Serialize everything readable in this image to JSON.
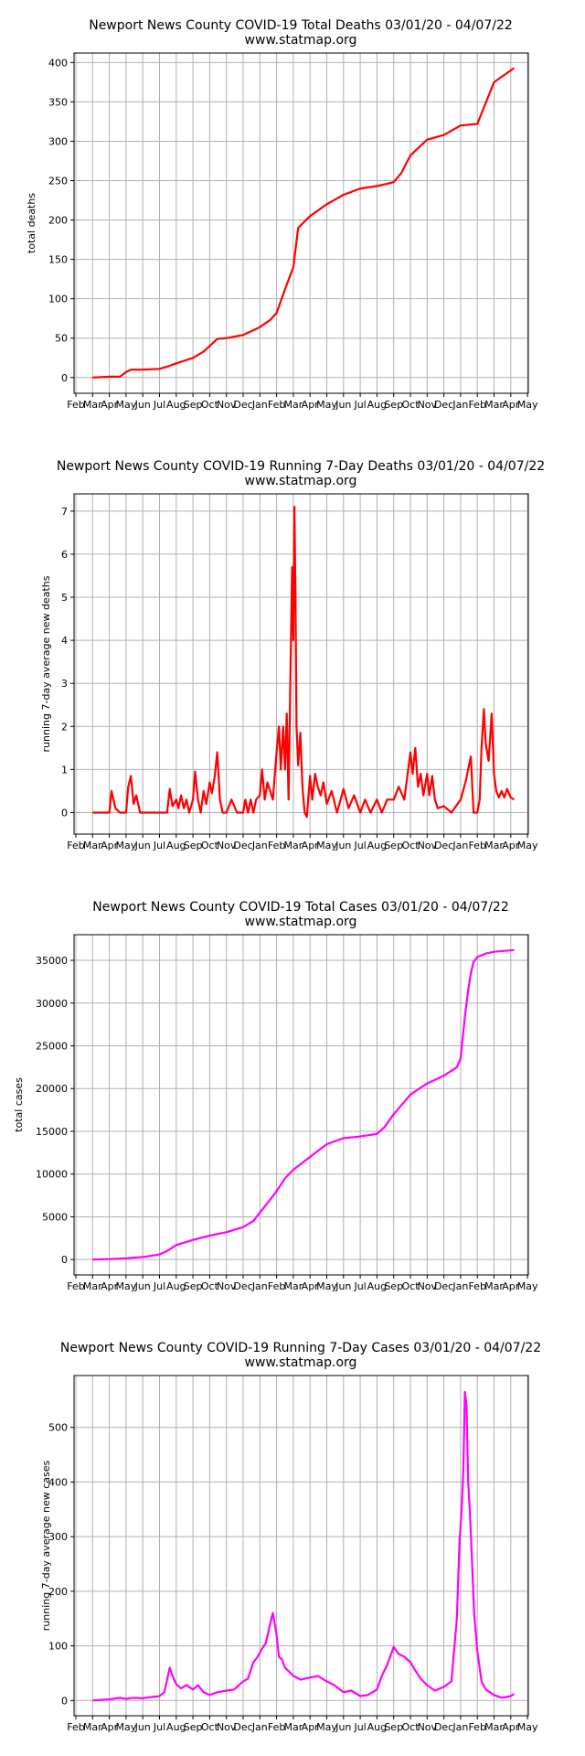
{
  "colors": {
    "deaths": "#ff0000",
    "cases": "#ff00ff",
    "grid": "#b0b0b0",
    "axis": "#000000"
  },
  "month_ticks": [
    "Feb",
    "Mar",
    "Apr",
    "May",
    "Jun",
    "Jul",
    "Aug",
    "Sep",
    "Oct",
    "Nov",
    "Dec",
    "Jan",
    "Feb",
    "Mar",
    "Apr",
    "May",
    "Jun",
    "Jul",
    "Aug",
    "Sep",
    "Oct",
    "Nov",
    "Dec",
    "Jan",
    "Feb",
    "Mar",
    "Apr",
    "May"
  ],
  "chart_data": [
    {
      "type": "line",
      "title": "Newport News County COVID-19 Total Deaths 03/01/20 - 04/07/22",
      "subtitle": "www.statmap.org",
      "xlabel": "",
      "ylabel": "total deaths",
      "grid": true,
      "ylim": [
        -20,
        412
      ],
      "yticks": [
        0,
        50,
        100,
        150,
        200,
        250,
        300,
        350,
        400
      ],
      "series": [
        {
          "color": "deaths",
          "x": [
            "2020-03-01",
            "2020-04-01",
            "2020-04-20",
            "2020-05-01",
            "2020-05-10",
            "2020-06-01",
            "2020-07-01",
            "2020-07-20",
            "2020-08-01",
            "2020-09-01",
            "2020-09-20",
            "2020-10-01",
            "2020-10-15",
            "2020-11-01",
            "2020-12-01",
            "2021-01-01",
            "2021-01-20",
            "2021-02-01",
            "2021-02-15",
            "2021-03-01",
            "2021-03-10",
            "2021-04-01",
            "2021-05-01",
            "2021-06-01",
            "2021-07-01",
            "2021-08-01",
            "2021-09-01",
            "2021-09-15",
            "2021-10-01",
            "2021-11-01",
            "2021-12-01",
            "2022-01-01",
            "2022-02-01",
            "2022-03-01",
            "2022-04-07"
          ],
          "y": [
            0,
            1,
            1,
            7,
            10,
            10,
            11,
            15,
            18,
            25,
            33,
            40,
            49,
            50,
            54,
            64,
            73,
            82,
            112,
            140,
            190,
            205,
            220,
            232,
            240,
            243,
            248,
            260,
            282,
            302,
            308,
            320,
            322,
            375,
            393
          ]
        }
      ]
    },
    {
      "type": "line",
      "title": "Newport News County COVID-19 Running 7-Day Deaths 03/01/20 - 04/07/22",
      "subtitle": "www.statmap.org",
      "xlabel": "",
      "ylabel": "running 7-day average new deaths",
      "grid": true,
      "ylim": [
        -0.5,
        7.4
      ],
      "yticks": [
        0,
        1,
        2,
        3,
        4,
        5,
        6,
        7
      ],
      "series": [
        {
          "color": "deaths",
          "x": [
            "2020-03-01",
            "2020-04-01",
            "2020-04-05",
            "2020-04-12",
            "2020-04-20",
            "2020-05-01",
            "2020-05-05",
            "2020-05-10",
            "2020-05-15",
            "2020-05-20",
            "2020-05-27",
            "2020-06-01",
            "2020-07-01",
            "2020-07-15",
            "2020-07-20",
            "2020-07-25",
            "2020-08-01",
            "2020-08-05",
            "2020-08-10",
            "2020-08-15",
            "2020-08-20",
            "2020-08-25",
            "2020-09-01",
            "2020-09-05",
            "2020-09-10",
            "2020-09-15",
            "2020-09-20",
            "2020-09-25",
            "2020-10-01",
            "2020-10-05",
            "2020-10-10",
            "2020-10-15",
            "2020-10-20",
            "2020-10-25",
            "2020-11-01",
            "2020-11-10",
            "2020-11-20",
            "2020-12-01",
            "2020-12-05",
            "2020-12-10",
            "2020-12-15",
            "2020-12-20",
            "2020-12-25",
            "2021-01-01",
            "2021-01-05",
            "2021-01-10",
            "2021-01-15",
            "2021-01-20",
            "2021-01-25",
            "2021-02-01",
            "2021-02-05",
            "2021-02-08",
            "2021-02-12",
            "2021-02-15",
            "2021-02-18",
            "2021-02-21",
            "2021-02-24",
            "2021-02-27",
            "2021-03-01",
            "2021-03-03",
            "2021-03-05",
            "2021-03-07",
            "2021-03-10",
            "2021-03-14",
            "2021-03-18",
            "2021-03-22",
            "2021-03-26",
            "2021-04-01",
            "2021-04-05",
            "2021-04-10",
            "2021-04-15",
            "2021-04-20",
            "2021-04-25",
            "2021-05-01",
            "2021-05-10",
            "2021-05-20",
            "2021-06-01",
            "2021-06-10",
            "2021-06-20",
            "2021-07-01",
            "2021-07-10",
            "2021-07-20",
            "2021-08-01",
            "2021-08-10",
            "2021-08-20",
            "2021-09-01",
            "2021-09-10",
            "2021-09-20",
            "2021-10-01",
            "2021-10-05",
            "2021-10-10",
            "2021-10-15",
            "2021-10-20",
            "2021-10-25",
            "2021-11-01",
            "2021-11-05",
            "2021-11-10",
            "2021-11-15",
            "2021-11-20",
            "2021-12-01",
            "2021-12-15",
            "2022-01-01",
            "2022-01-10",
            "2022-01-20",
            "2022-01-25",
            "2022-02-01",
            "2022-02-05",
            "2022-02-08",
            "2022-02-12",
            "2022-02-15",
            "2022-02-20",
            "2022-02-25",
            "2022-03-01",
            "2022-03-05",
            "2022-03-10",
            "2022-03-15",
            "2022-03-20",
            "2022-03-25",
            "2022-04-01",
            "2022-04-07"
          ],
          "y": [
            0,
            0,
            0.5,
            0.1,
            0,
            0,
            0.6,
            0.85,
            0.2,
            0.4,
            0,
            0,
            0,
            0,
            0.55,
            0.15,
            0.3,
            0.1,
            0.4,
            0.1,
            0.3,
            0,
            0.3,
            0.95,
            0.3,
            0,
            0.5,
            0.2,
            0.7,
            0.45,
            0.8,
            1.4,
            0.3,
            0,
            0,
            0.3,
            0,
            0,
            0.3,
            0,
            0.3,
            0,
            0.3,
            0.4,
            1.0,
            0.3,
            0.7,
            0.5,
            0.3,
            1.4,
            2.0,
            1.0,
            2.0,
            1.0,
            2.3,
            0.3,
            3.0,
            5.7,
            4.0,
            7.1,
            5.0,
            2.0,
            1.1,
            1.85,
            0.6,
            0,
            -0.1,
            0.85,
            0.3,
            0.9,
            0.6,
            0.4,
            0.7,
            0.2,
            0.5,
            0,
            0.55,
            0.1,
            0.4,
            0,
            0.3,
            0,
            0.3,
            0,
            0.3,
            0.3,
            0.6,
            0.3,
            1.4,
            0.9,
            1.5,
            0.6,
            0.9,
            0.4,
            0.9,
            0.4,
            0.85,
            0.3,
            0.1,
            0.15,
            0,
            0.3,
            0.7,
            1.3,
            0,
            0,
            0.3,
            1.5,
            2.4,
            1.6,
            1.2,
            2.3,
            0.9,
            0.5,
            0.35,
            0.5,
            0.35,
            0.55,
            0.35,
            0.3
          ]
        }
      ]
    },
    {
      "type": "line",
      "title": "Newport News County COVID-19 Total Cases 03/01/20 - 04/07/22",
      "subtitle": "www.statmap.org",
      "xlabel": "",
      "ylabel": "total cases",
      "grid": true,
      "ylim": [
        -1800,
        38000
      ],
      "yticks": [
        0,
        5000,
        10000,
        15000,
        20000,
        25000,
        30000,
        35000
      ],
      "series": [
        {
          "color": "cases",
          "x": [
            "2020-03-01",
            "2020-04-01",
            "2020-05-01",
            "2020-06-01",
            "2020-07-01",
            "2020-07-15",
            "2020-08-01",
            "2020-09-01",
            "2020-10-01",
            "2020-11-01",
            "2020-12-01",
            "2020-12-20",
            "2021-01-01",
            "2021-01-20",
            "2021-02-01",
            "2021-02-15",
            "2021-03-01",
            "2021-04-01",
            "2021-05-01",
            "2021-06-01",
            "2021-07-01",
            "2021-08-01",
            "2021-08-15",
            "2021-09-01",
            "2021-10-01",
            "2021-11-01",
            "2021-12-01",
            "2021-12-25",
            "2022-01-01",
            "2022-01-05",
            "2022-01-10",
            "2022-01-15",
            "2022-01-20",
            "2022-01-25",
            "2022-02-01",
            "2022-02-15",
            "2022-03-01",
            "2022-04-07"
          ],
          "y": [
            0,
            50,
            150,
            300,
            600,
            1000,
            1700,
            2300,
            2800,
            3200,
            3800,
            4500,
            5500,
            7000,
            8000,
            9500,
            10500,
            12000,
            13500,
            14200,
            14400,
            14700,
            15500,
            17000,
            19300,
            20600,
            21500,
            22500,
            23500,
            26000,
            29000,
            31500,
            33500,
            34800,
            35400,
            35800,
            36000,
            36200
          ]
        }
      ]
    },
    {
      "type": "line",
      "title": "Newport News County COVID-19 Running 7-Day Cases 03/01/20 - 04/07/22",
      "subtitle": "www.statmap.org",
      "xlabel": "",
      "ylabel": "running 7-day average new cases",
      "grid": true,
      "ylim": [
        -28,
        595
      ],
      "yticks": [
        0,
        100,
        200,
        300,
        400,
        500
      ],
      "series": [
        {
          "color": "cases",
          "x": [
            "2020-03-01",
            "2020-04-01",
            "2020-04-20",
            "2020-05-01",
            "2020-05-15",
            "2020-06-01",
            "2020-06-15",
            "2020-07-01",
            "2020-07-10",
            "2020-07-20",
            "2020-07-25",
            "2020-08-01",
            "2020-08-10",
            "2020-08-20",
            "2020-09-01",
            "2020-09-10",
            "2020-09-20",
            "2020-10-01",
            "2020-10-15",
            "2020-11-01",
            "2020-11-15",
            "2020-12-01",
            "2020-12-10",
            "2020-12-20",
            "2020-12-28",
            "2021-01-05",
            "2021-01-12",
            "2021-01-20",
            "2021-01-25",
            "2021-02-01",
            "2021-02-05",
            "2021-02-10",
            "2021-02-15",
            "2021-02-20",
            "2021-03-01",
            "2021-03-15",
            "2021-04-01",
            "2021-04-15",
            "2021-05-01",
            "2021-05-15",
            "2021-06-01",
            "2021-06-15",
            "2021-07-01",
            "2021-07-15",
            "2021-08-01",
            "2021-08-10",
            "2021-08-20",
            "2021-09-01",
            "2021-09-10",
            "2021-09-20",
            "2021-10-01",
            "2021-10-10",
            "2021-10-20",
            "2021-11-01",
            "2021-11-15",
            "2021-12-01",
            "2021-12-15",
            "2021-12-25",
            "2021-12-30",
            "2022-01-03",
            "2022-01-06",
            "2022-01-09",
            "2022-01-12",
            "2022-01-15",
            "2022-01-18",
            "2022-01-22",
            "2022-01-26",
            "2022-02-01",
            "2022-02-08",
            "2022-02-15",
            "2022-03-01",
            "2022-03-15",
            "2022-04-01",
            "2022-04-07"
          ],
          "y": [
            0,
            2,
            5,
            3,
            5,
            4,
            6,
            8,
            15,
            60,
            45,
            30,
            22,
            28,
            20,
            28,
            15,
            10,
            15,
            18,
            20,
            35,
            40,
            70,
            80,
            95,
            105,
            140,
            160,
            120,
            80,
            75,
            60,
            55,
            45,
            38,
            42,
            45,
            35,
            28,
            15,
            18,
            8,
            10,
            20,
            45,
            65,
            98,
            85,
            80,
            70,
            55,
            40,
            28,
            18,
            25,
            35,
            150,
            290,
            350,
            420,
            565,
            540,
            400,
            350,
            260,
            160,
            90,
            35,
            20,
            10,
            5,
            8,
            12
          ]
        }
      ]
    }
  ]
}
